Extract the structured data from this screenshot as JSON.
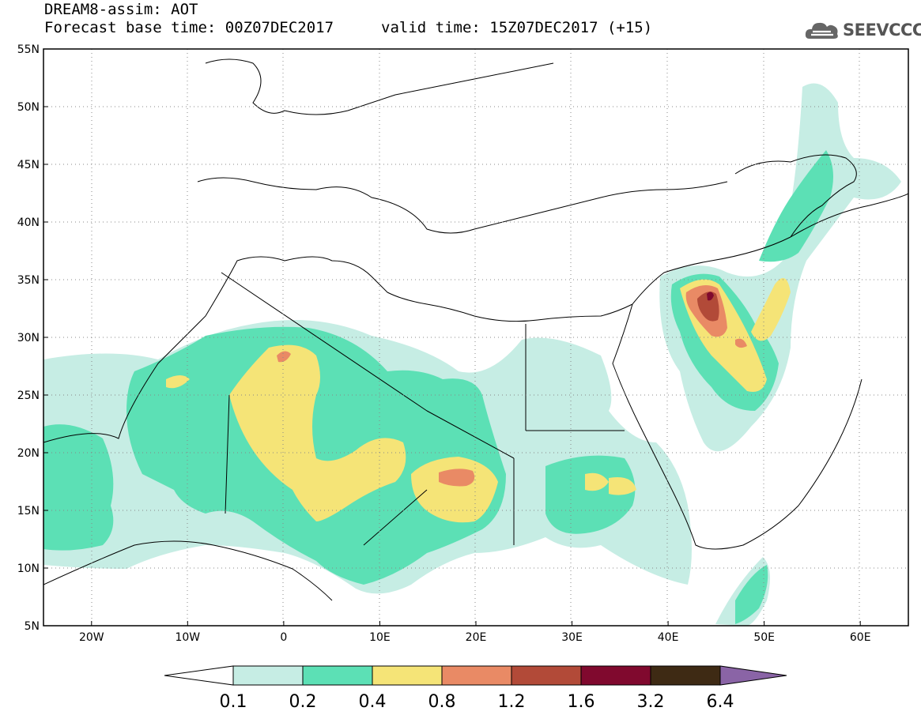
{
  "title": {
    "line1": "DREAM8-assim: AOT",
    "line2": "Forecast base time: 00Z07DEC2017",
    "valid": "valid time: 15Z07DEC2017 (+15)"
  },
  "logo": {
    "text": "SEEVCCC",
    "icon": "cloud-icon"
  },
  "map": {
    "lon_range": [
      -25,
      65
    ],
    "lat_range": [
      5,
      55
    ],
    "gridlines": "dotted",
    "lat_labels": [
      "55N",
      "50N",
      "45N",
      "40N",
      "35N",
      "30N",
      "25N",
      "20N",
      "15N",
      "10N",
      "5N"
    ],
    "lon_labels": [
      "20W",
      "10W",
      "0",
      "10E",
      "20E",
      "30E",
      "40E",
      "50E",
      "60E"
    ]
  },
  "colorbar": {
    "labels": [
      "0.1",
      "0.2",
      "0.4",
      "0.8",
      "1.2",
      "1.6",
      "3.2",
      "6.4"
    ],
    "colors": [
      "#ffffff",
      "#c6ede4",
      "#5ce0b5",
      "#f5e477",
      "#e98a65",
      "#b24a38",
      "#80092e",
      "#3e2a14",
      "#8a64a6"
    ]
  }
}
